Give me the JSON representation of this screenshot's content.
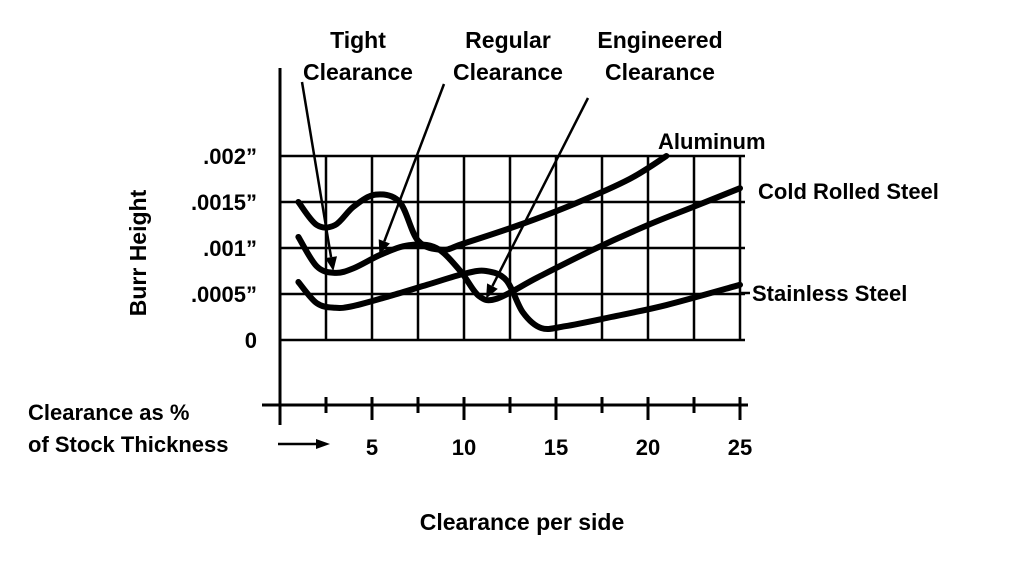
{
  "chart_data": {
    "type": "line",
    "xlabel": "Clearance per side",
    "ylabel": "Burr Height",
    "x_caption_line1": "Clearance as %",
    "x_caption_line2": "of Stock Thickness",
    "x_caption_arrow": "→",
    "xlim": [
      0,
      25
    ],
    "ylim": [
      0,
      0.002
    ],
    "x_ticks": [
      {
        "value": 5,
        "label": "5"
      },
      {
        "value": 10,
        "label": "10"
      },
      {
        "value": 15,
        "label": "15"
      },
      {
        "value": 20,
        "label": "20"
      },
      {
        "value": 25,
        "label": "25"
      }
    ],
    "y_ticks": [
      {
        "value": 0,
        "label": "0"
      },
      {
        "value": 0.0005,
        "label": ".0005”"
      },
      {
        "value": 0.001,
        "label": ".001”"
      },
      {
        "value": 0.0015,
        "label": ".0015”"
      },
      {
        "value": 0.002,
        "label": ".002”"
      }
    ],
    "grid": true,
    "series": [
      {
        "name": "Aluminum",
        "points": [
          [
            1.0,
            0.0015
          ],
          [
            2.0,
            0.00125
          ],
          [
            3.0,
            0.00125
          ],
          [
            4.0,
            0.00145
          ],
          [
            5.2,
            0.00158
          ],
          [
            6.5,
            0.0015
          ],
          [
            7.5,
            0.00108
          ],
          [
            8.8,
            0.00098
          ],
          [
            10.0,
            0.00105
          ],
          [
            13.0,
            0.00125
          ],
          [
            16.0,
            0.00148
          ],
          [
            19.0,
            0.00175
          ],
          [
            21.0,
            0.002
          ]
        ]
      },
      {
        "name": "Cold Rolled Steel",
        "points": [
          [
            1.0,
            0.00112
          ],
          [
            2.0,
            0.0008
          ],
          [
            3.0,
            0.00073
          ],
          [
            4.0,
            0.00078
          ],
          [
            5.5,
            0.00093
          ],
          [
            7.0,
            0.00103
          ],
          [
            8.5,
            0.001
          ],
          [
            9.8,
            0.00075
          ],
          [
            10.8,
            0.00048
          ],
          [
            11.8,
            0.00045
          ],
          [
            14.0,
            0.00068
          ],
          [
            17.0,
            0.00098
          ],
          [
            20.0,
            0.00125
          ],
          [
            22.5,
            0.00145
          ],
          [
            25.0,
            0.00165
          ]
        ]
      },
      {
        "name": "Stainless Steel",
        "points": [
          [
            1.0,
            0.00063
          ],
          [
            2.0,
            0.0004
          ],
          [
            3.0,
            0.00035
          ],
          [
            4.0,
            0.00037
          ],
          [
            6.0,
            0.00048
          ],
          [
            8.0,
            0.0006
          ],
          [
            10.0,
            0.00072
          ],
          [
            11.2,
            0.00075
          ],
          [
            12.3,
            0.00065
          ],
          [
            13.2,
            0.0003
          ],
          [
            14.2,
            0.00013
          ],
          [
            15.5,
            0.00015
          ],
          [
            18.0,
            0.00025
          ],
          [
            21.0,
            0.00038
          ],
          [
            25.0,
            0.0006
          ]
        ]
      }
    ],
    "annotations": [
      {
        "line1": "Tight",
        "line2": "Clearance",
        "points_to": [
          2.9,
          0.00075
        ]
      },
      {
        "line1": "Regular",
        "line2": "Clearance",
        "points_to": [
          5.4,
          0.00093
        ]
      },
      {
        "line1": "Engineered",
        "line2": "Clearance",
        "points_to": [
          11.2,
          0.00045
        ]
      }
    ]
  }
}
